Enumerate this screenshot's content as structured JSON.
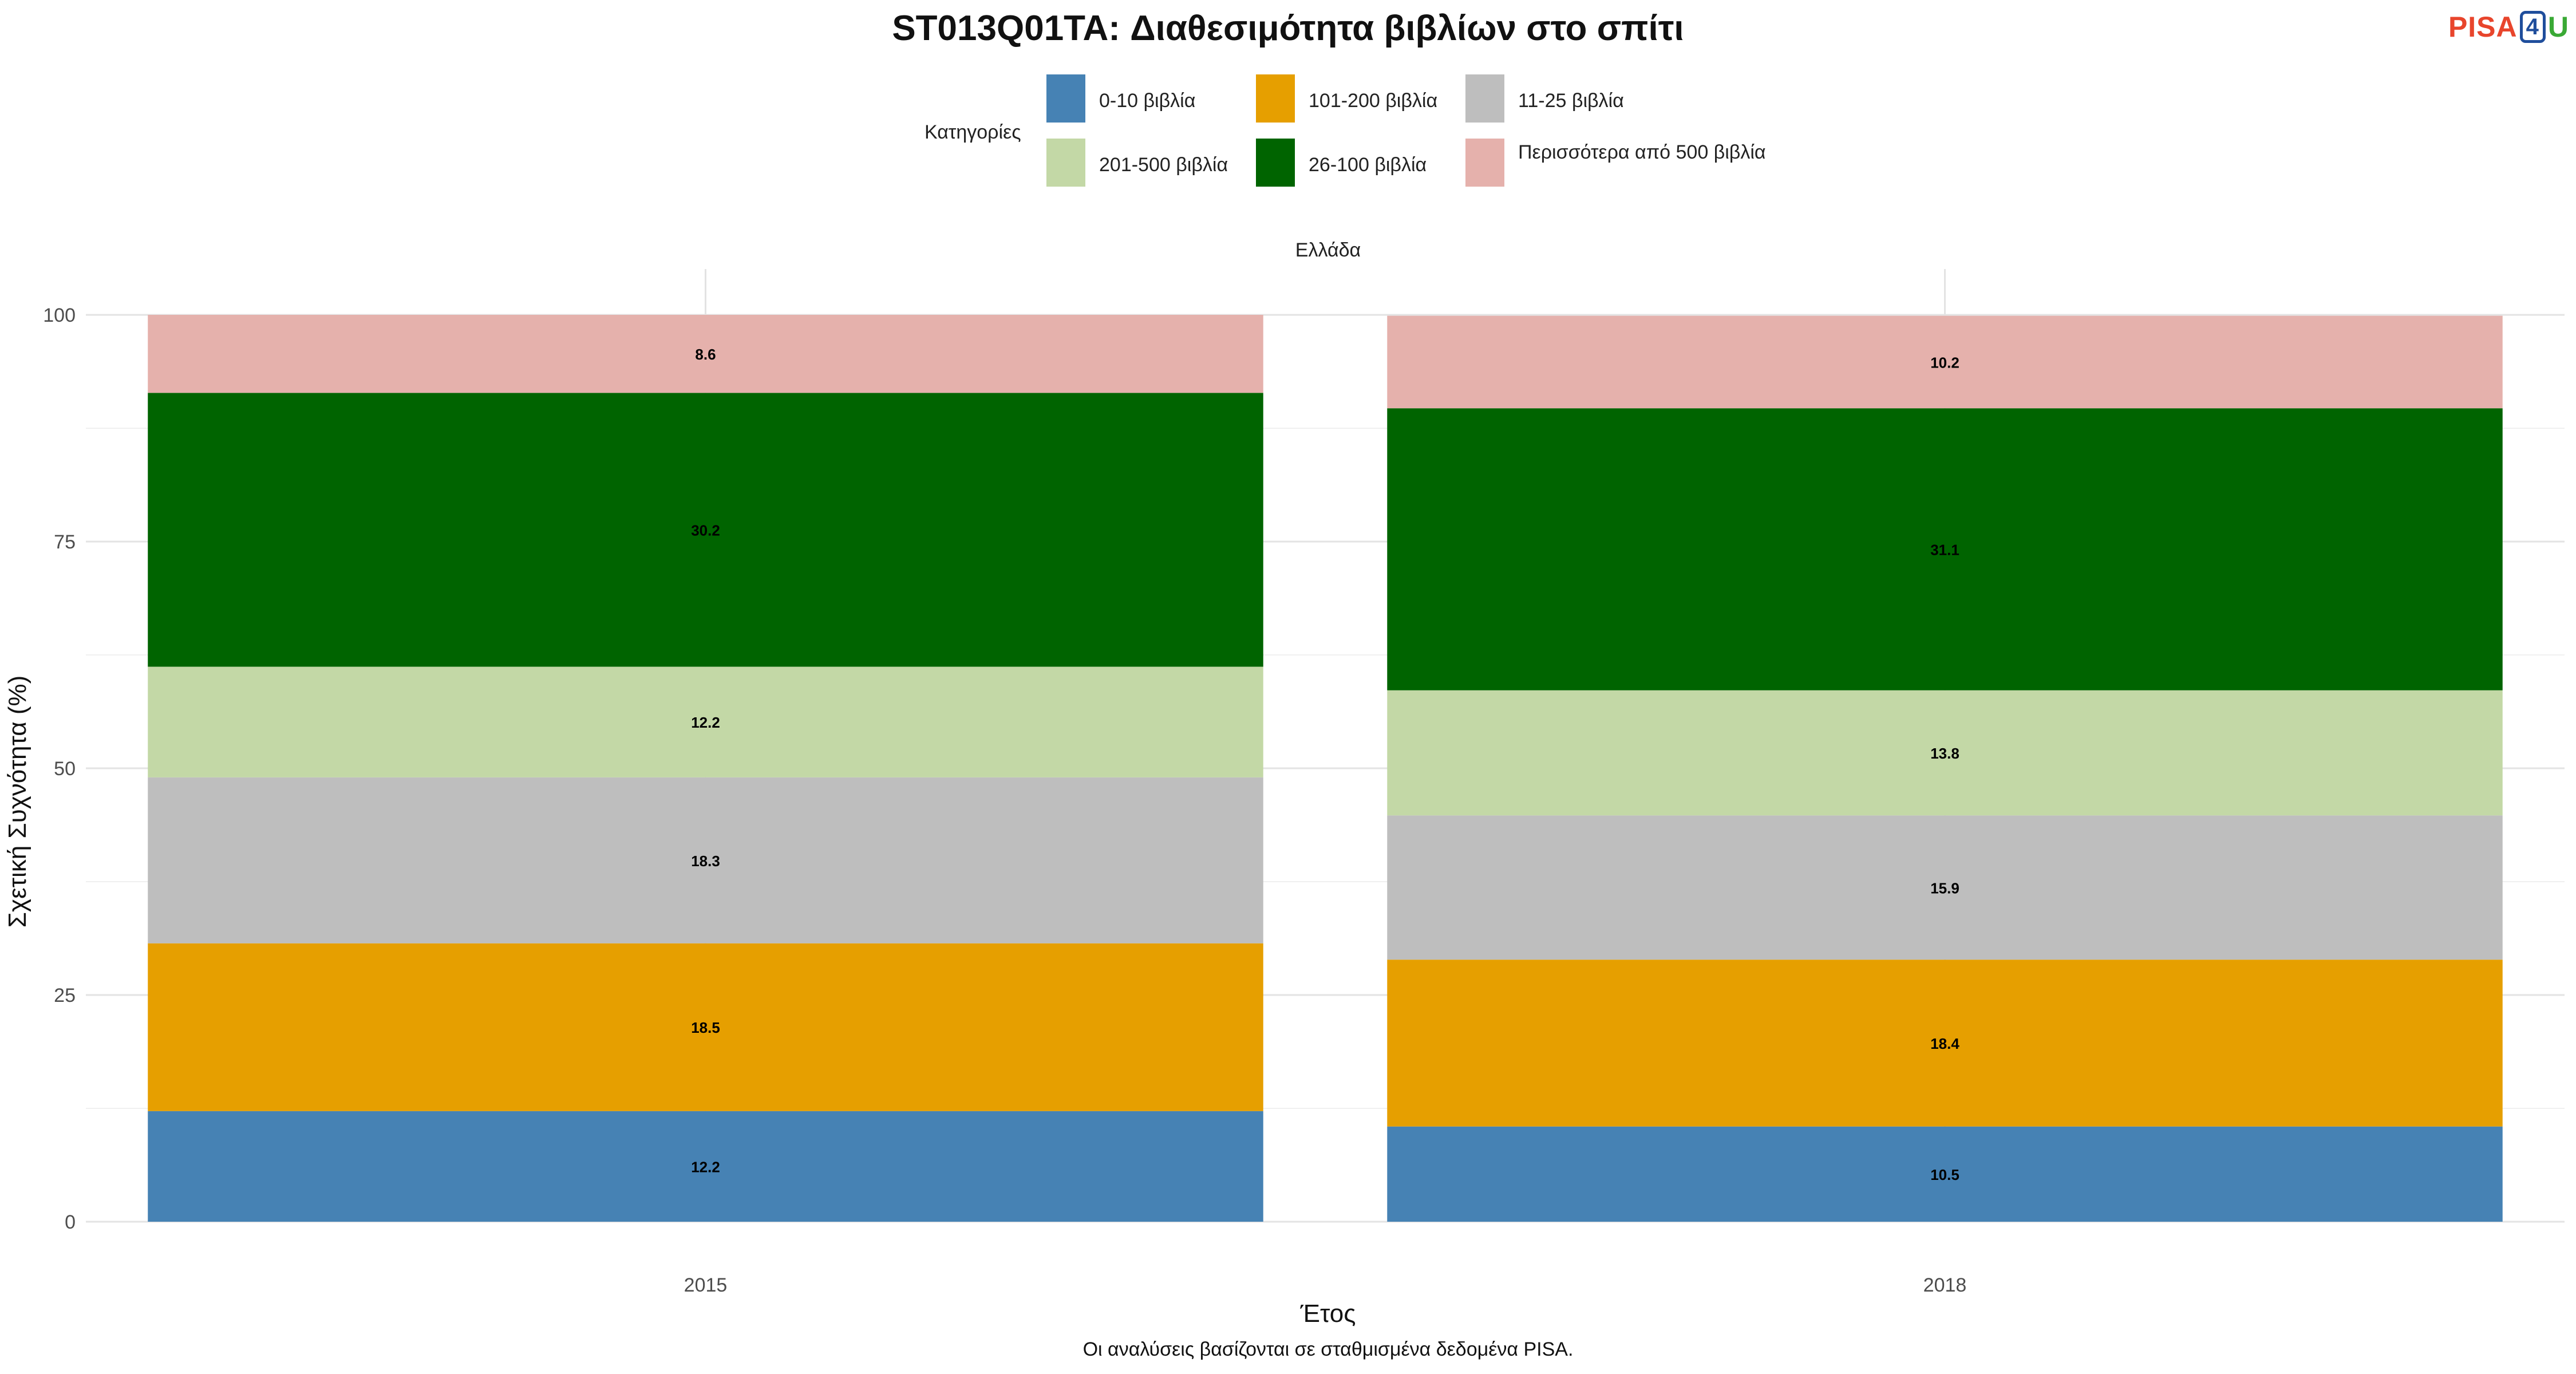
{
  "title": "ST013Q01TA: Διαθεσιμότητα βιβλίων στο σπίτι",
  "logo": {
    "part1": "PISA",
    "part2": "4",
    "part3": "U"
  },
  "legend": {
    "title": "Κατηγορίες",
    "items": [
      {
        "label": "0-10 βιβλία",
        "color": "#4682b4"
      },
      {
        "label": "101-200 βιβλία",
        "color": "#e69f00"
      },
      {
        "label": "11-25 βιβλία",
        "color": "#bebebe"
      },
      {
        "label": "201-500 βιβλία",
        "color": "#c3d8a6"
      },
      {
        "label": "26-100 βιβλία",
        "color": "#006400"
      },
      {
        "label": "Περισσότερα από 500 βιβλία",
        "color": "#e5b1ac"
      }
    ]
  },
  "facet_label": "Ελλάδα",
  "caption": "Οι αναλύσεις βασίζονται σε σταθμισμένα δεδομένα PISA.",
  "chart_data": {
    "type": "bar",
    "stacked": true,
    "categories": [
      "2015",
      "2018"
    ],
    "xlabel": "Έτος",
    "ylabel": "Σχετική Συχνότητα (%)",
    "ylim": [
      0,
      100
    ],
    "yticks": [
      0,
      25,
      50,
      75,
      100
    ],
    "grid": true,
    "legend_position": "top",
    "series": [
      {
        "name": "0-10 βιβλία",
        "color": "#4682b4",
        "values": [
          12.2,
          10.5
        ]
      },
      {
        "name": "101-200 βιβλία",
        "color": "#e69f00",
        "values": [
          18.5,
          18.4
        ]
      },
      {
        "name": "11-25 βιβλία",
        "color": "#bebebe",
        "values": [
          18.3,
          15.9
        ]
      },
      {
        "name": "201-500 βιβλία",
        "color": "#c3d8a6",
        "values": [
          12.2,
          13.8
        ]
      },
      {
        "name": "26-100 βιβλία",
        "color": "#006400",
        "values": [
          30.2,
          31.1
        ]
      },
      {
        "name": "Περισσότερα από 500 βιβλία",
        "color": "#e5b1ac",
        "values": [
          8.6,
          10.2
        ]
      }
    ],
    "stack_order_bottom_to_top": [
      "0-10 βιβλία",
      "101-200 βιβλία",
      "11-25 βιβλία",
      "201-500 βιβλία",
      "26-100 βιβλία",
      "Περισσότερα από 500 βιβλία"
    ]
  }
}
